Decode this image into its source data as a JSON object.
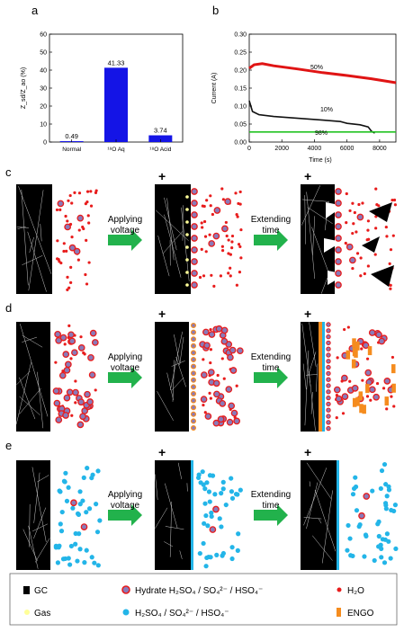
{
  "panels": {
    "a": "a",
    "b": "b",
    "c": "c",
    "d": "d",
    "e": "e"
  },
  "chart_data": [
    {
      "type": "bar",
      "ylabel": "Z_sd/Z_ao (%)",
      "ylim": [
        0,
        60
      ],
      "yticks": [
        "0",
        "10",
        "20",
        "30",
        "40",
        "50",
        "60"
      ],
      "categories": [
        "Normal",
        "¹⁸O Aq",
        "¹⁸O Acid"
      ],
      "values": [
        0.49,
        41.33,
        3.74
      ],
      "value_labels": [
        "0.49",
        "41.33",
        "3.74"
      ],
      "bar_color": "#1414e6"
    },
    {
      "type": "line",
      "xlabel": "Time (s)",
      "ylabel": "Current (A)",
      "xlim": [
        0,
        9000
      ],
      "ylim": [
        0,
        0.3
      ],
      "xticks": [
        "0",
        "2000",
        "4000",
        "6000",
        "8000"
      ],
      "yticks": [
        "0.00",
        "0.05",
        "0.10",
        "0.15",
        "0.20",
        "0.25",
        "0.30"
      ],
      "series": [
        {
          "name": "50%",
          "color": "#e01414",
          "points": [
            [
              0,
              0.205
            ],
            [
              300,
              0.215
            ],
            [
              800,
              0.218
            ],
            [
              1500,
              0.212
            ],
            [
              3000,
              0.203
            ],
            [
              4500,
              0.193
            ],
            [
              6000,
              0.185
            ],
            [
              7500,
              0.176
            ],
            [
              9000,
              0.165
            ]
          ]
        },
        {
          "name": "10%",
          "color": "#111111",
          "points": [
            [
              0,
              0.115
            ],
            [
              200,
              0.085
            ],
            [
              600,
              0.076
            ],
            [
              1500,
              0.071
            ],
            [
              3000,
              0.066
            ],
            [
              4500,
              0.061
            ],
            [
              5600,
              0.057
            ],
            [
              6000,
              0.052
            ],
            [
              6800,
              0.048
            ],
            [
              7300,
              0.042
            ],
            [
              7500,
              0.03
            ],
            [
              7700,
              0.025
            ]
          ]
        },
        {
          "name": "98%",
          "color": "#22c322",
          "points": [
            [
              0,
              0.028
            ],
            [
              9000,
              0.028
            ]
          ]
        }
      ]
    }
  ],
  "schemes": {
    "applying": [
      "Applying",
      "voltage"
    ],
    "extending": [
      "Extending",
      "time"
    ],
    "plus": "+"
  },
  "legend": {
    "gc": "GC",
    "gas": "Gas",
    "hydrate": "Hydrate H₂SO₄ / SO₄²⁻ / HSO₄⁻",
    "h2o": "H₂O",
    "acid": "H₂SO₄ / SO₄²⁻ / HSO₄⁻",
    "engo": "ENGO"
  },
  "colors": {
    "arrow": "#22b24c",
    "water": "#e81c1c",
    "hydrate_core": "#8a7ab8",
    "acid": "#23b5e8",
    "engo": "#f58c1e",
    "gas": "#ffff99",
    "gc": "#000000"
  }
}
